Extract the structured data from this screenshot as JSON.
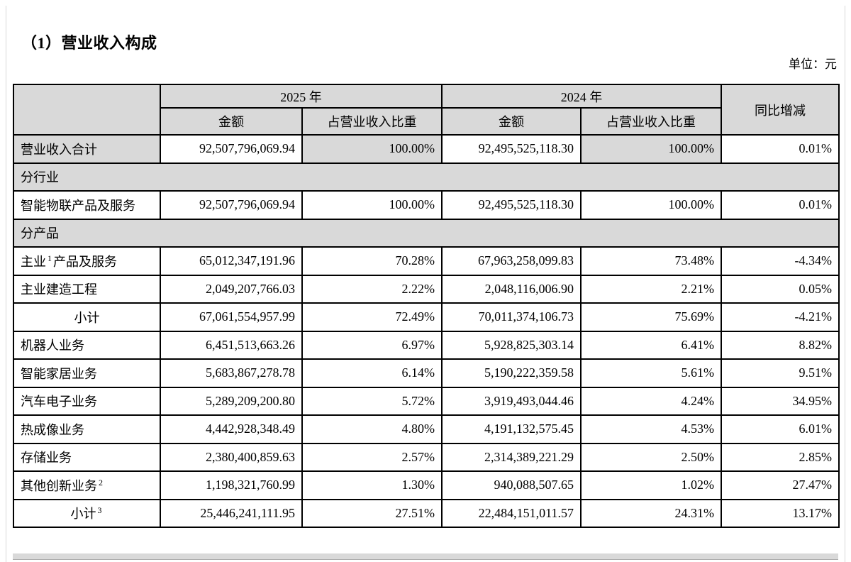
{
  "page": {
    "title": "（1）营业收入构成",
    "unit_label": "单位：元"
  },
  "table": {
    "header": {
      "year_2025": "2025 年",
      "year_2024": "2024 年",
      "amount": "金额",
      "ratio": "占营业收入比重",
      "yoy": "同比增减"
    },
    "rows": [
      {
        "type": "data",
        "label": "营业收入合计",
        "amount_2025": "92,507,796,069.94",
        "ratio_2025": "100.00%",
        "amount_2024": "92,495,525,118.30",
        "ratio_2024": "100.00%",
        "yoy": "0.01%",
        "gray": [
          "label",
          "ratio_2025",
          "ratio_2024"
        ]
      },
      {
        "type": "section",
        "label": "分行业"
      },
      {
        "type": "data",
        "label": "智能物联产品及服务",
        "amount_2025": "92,507,796,069.94",
        "ratio_2025": "100.00%",
        "amount_2024": "92,495,525,118.30",
        "ratio_2024": "100.00%",
        "yoy": "0.01%",
        "gray": []
      },
      {
        "type": "section",
        "label": "分产品"
      },
      {
        "type": "data",
        "label": "主业",
        "sup": "1",
        "label_post": "产品及服务",
        "amount_2025": "65,012,347,191.96",
        "ratio_2025": "70.28%",
        "amount_2024": "67,963,258,099.83",
        "ratio_2024": "73.48%",
        "yoy": "-4.34%",
        "gray": []
      },
      {
        "type": "data",
        "label": "主业建造工程",
        "amount_2025": "2,049,207,766.03",
        "ratio_2025": "2.22%",
        "amount_2024": "2,048,116,006.90",
        "ratio_2024": "2.21%",
        "yoy": "0.05%",
        "gray": []
      },
      {
        "type": "data",
        "label": "小计",
        "center": true,
        "amount_2025": "67,061,554,957.99",
        "ratio_2025": "72.49%",
        "amount_2024": "70,011,374,106.73",
        "ratio_2024": "75.69%",
        "yoy": "-4.21%",
        "gray": []
      },
      {
        "type": "data",
        "label": "机器人业务",
        "amount_2025": "6,451,513,663.26",
        "ratio_2025": "6.97%",
        "amount_2024": "5,928,825,303.14",
        "ratio_2024": "6.41%",
        "yoy": "8.82%",
        "gray": []
      },
      {
        "type": "data",
        "label": "智能家居业务",
        "amount_2025": "5,683,867,278.78",
        "ratio_2025": "6.14%",
        "amount_2024": "5,190,222,359.58",
        "ratio_2024": "5.61%",
        "yoy": "9.51%",
        "gray": []
      },
      {
        "type": "data",
        "label": "汽车电子业务",
        "amount_2025": "5,289,209,200.80",
        "ratio_2025": "5.72%",
        "amount_2024": "3,919,493,044.46",
        "ratio_2024": "4.24%",
        "yoy": "34.95%",
        "gray": []
      },
      {
        "type": "data",
        "label": "热成像业务",
        "amount_2025": "4,442,928,348.49",
        "ratio_2025": "4.80%",
        "amount_2024": "4,191,132,575.45",
        "ratio_2024": "4.53%",
        "yoy": "6.01%",
        "gray": []
      },
      {
        "type": "data",
        "label": "存储业务",
        "amount_2025": "2,380,400,859.63",
        "ratio_2025": "2.57%",
        "amount_2024": "2,314,389,221.29",
        "ratio_2024": "2.50%",
        "yoy": "2.85%",
        "gray": []
      },
      {
        "type": "data",
        "label": "其他创新业务",
        "sup": "2",
        "amount_2025": "1,198,321,760.99",
        "ratio_2025": "1.30%",
        "amount_2024": "940,088,507.65",
        "ratio_2024": "1.02%",
        "yoy": "27.47%",
        "gray": []
      },
      {
        "type": "data",
        "label": "小计",
        "sup": "3",
        "center": true,
        "amount_2025": "25,446,241,111.95",
        "ratio_2025": "27.51%",
        "amount_2024": "22,484,151,011.57",
        "ratio_2024": "24.31%",
        "yoy": "13.17%",
        "gray": []
      }
    ]
  }
}
